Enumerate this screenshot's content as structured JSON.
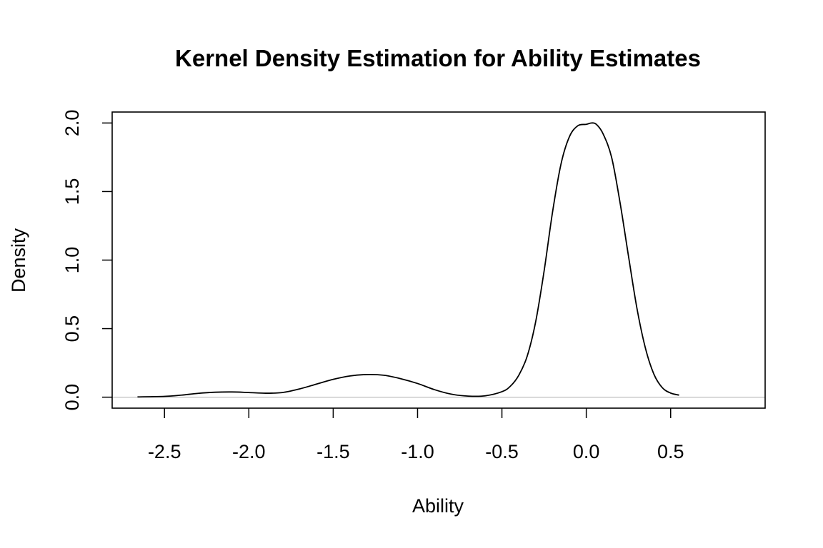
{
  "chart_data": {
    "type": "line",
    "title": "Kernel Density Estimation for Ability Estimates",
    "xlabel": "Ability",
    "ylabel": "Density",
    "xlim": [
      -2.81,
      1.06
    ],
    "ylim": [
      -0.08,
      2.08
    ],
    "x_ticks": [
      -2.5,
      -2.0,
      -1.5,
      -1.0,
      -0.5,
      0.0,
      0.5
    ],
    "x_tick_labels": [
      "-2.5",
      "-2.0",
      "-1.5",
      "-1.0",
      "-0.5",
      "0.0",
      "0.5"
    ],
    "y_ticks": [
      0.0,
      0.5,
      1.0,
      1.5,
      2.0
    ],
    "y_tick_labels": [
      "0.0",
      "0.5",
      "1.0",
      "1.5",
      "2.0"
    ],
    "grid": false,
    "baseline": 0,
    "colors": {
      "line": "#000000",
      "baseline": "#bebebe",
      "frame": "#000000"
    },
    "series": [
      {
        "x": [
          -2.66,
          -2.5,
          -2.4,
          -2.3,
          -2.2,
          -2.1,
          -2.0,
          -1.9,
          -1.8,
          -1.7,
          -1.6,
          -1.5,
          -1.4,
          -1.3,
          -1.2,
          -1.1,
          -1.0,
          -0.9,
          -0.8,
          -0.7,
          -0.6,
          -0.5,
          -0.45,
          -0.4,
          -0.35,
          -0.3,
          -0.25,
          -0.2,
          -0.15,
          -0.1,
          -0.05,
          0.0,
          0.03,
          0.06,
          0.1,
          0.15,
          0.2,
          0.25,
          0.3,
          0.35,
          0.4,
          0.45,
          0.5,
          0.55
        ],
        "y": [
          0.002,
          0.006,
          0.015,
          0.028,
          0.036,
          0.038,
          0.034,
          0.029,
          0.034,
          0.06,
          0.095,
          0.13,
          0.155,
          0.165,
          0.16,
          0.135,
          0.1,
          0.055,
          0.022,
          0.008,
          0.01,
          0.04,
          0.08,
          0.16,
          0.3,
          0.55,
          0.92,
          1.35,
          1.7,
          1.9,
          1.98,
          1.99,
          2.0,
          1.99,
          1.92,
          1.75,
          1.42,
          1.03,
          0.65,
          0.36,
          0.17,
          0.07,
          0.03,
          0.015
        ]
      }
    ]
  }
}
